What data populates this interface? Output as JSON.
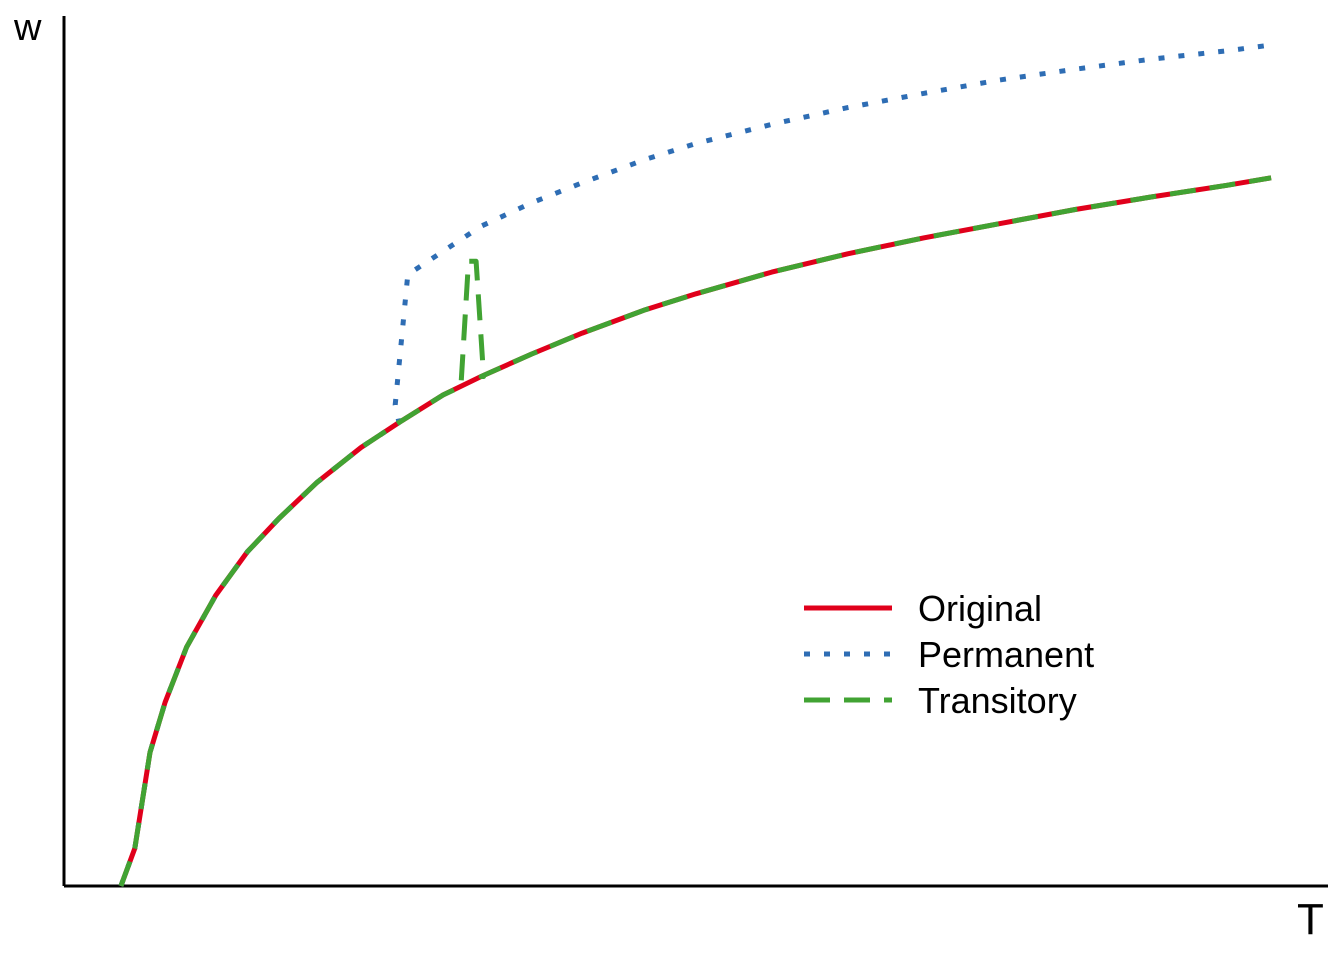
{
  "chart_data": {
    "type": "line",
    "title": "",
    "xlabel": "T",
    "ylabel": "w",
    "xlim": [
      0,
      1
    ],
    "ylim": [
      0,
      1
    ],
    "grid": false,
    "ticks": false,
    "legend_position": "bottom-right",
    "series": [
      {
        "name": "Original",
        "color": "#E0001B",
        "style": "solid",
        "x": [
          0.045,
          0.056,
          0.068,
          0.08,
          0.097,
          0.12,
          0.145,
          0.17,
          0.2,
          0.235,
          0.265,
          0.3,
          0.33,
          0.37,
          0.41,
          0.46,
          0.5,
          0.56,
          0.62,
          0.68,
          0.74,
          0.8,
          0.86,
          0.92,
          0.955
        ],
        "y": [
          0.0,
          0.045,
          0.16,
          0.22,
          0.286,
          0.348,
          0.4,
          0.44,
          0.483,
          0.525,
          0.555,
          0.588,
          0.61,
          0.637,
          0.662,
          0.69,
          0.709,
          0.735,
          0.757,
          0.776,
          0.793,
          0.81,
          0.825,
          0.839,
          0.848
        ]
      },
      {
        "name": "Permanent",
        "color": "#2E6DB4",
        "style": "dotted",
        "x": [
          0.045,
          0.056,
          0.068,
          0.08,
          0.097,
          0.12,
          0.145,
          0.17,
          0.2,
          0.235,
          0.265,
          0.262,
          0.272,
          0.3,
          0.33,
          0.37,
          0.41,
          0.46,
          0.5,
          0.56,
          0.62,
          0.68,
          0.74,
          0.8,
          0.86,
          0.92,
          0.955
        ],
        "y": [
          0.0,
          0.045,
          0.16,
          0.22,
          0.286,
          0.348,
          0.4,
          0.44,
          0.483,
          0.525,
          0.555,
          0.576,
          0.732,
          0.76,
          0.79,
          0.818,
          0.842,
          0.87,
          0.889,
          0.912,
          0.932,
          0.949,
          0.965,
          0.978,
          0.99,
          1.0,
          1.007
        ]
      },
      {
        "name": "Transitory",
        "color": "#41A333",
        "style": "dashed",
        "x": [
          0.045,
          0.056,
          0.068,
          0.08,
          0.097,
          0.12,
          0.145,
          0.17,
          0.2,
          0.235,
          0.265,
          0.3,
          0.314,
          0.32,
          0.326,
          0.332,
          0.33,
          0.37,
          0.41,
          0.46,
          0.5,
          0.56,
          0.62,
          0.68,
          0.74,
          0.8,
          0.86,
          0.92,
          0.955
        ],
        "y": [
          0.0,
          0.045,
          0.16,
          0.22,
          0.286,
          0.348,
          0.4,
          0.44,
          0.483,
          0.525,
          0.555,
          0.588,
          0.598,
          0.748,
          0.748,
          0.61,
          0.61,
          0.637,
          0.662,
          0.69,
          0.709,
          0.735,
          0.757,
          0.776,
          0.793,
          0.81,
          0.825,
          0.839,
          0.848
        ]
      }
    ]
  }
}
